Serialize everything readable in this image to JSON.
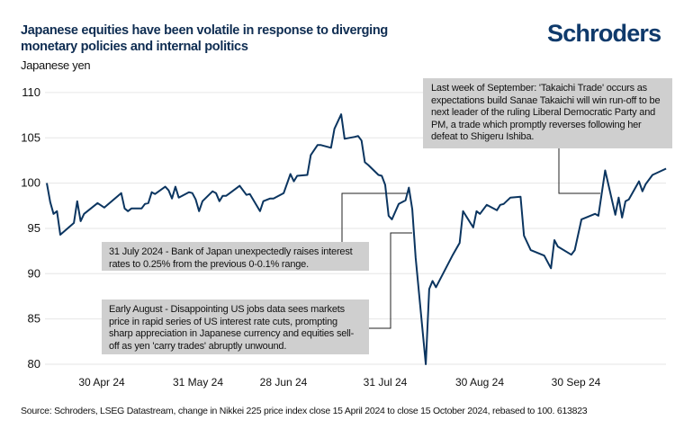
{
  "header": {
    "title": "Japanese equities have been volatile in response to diverging monetary policies and internal politics",
    "logo": "Schroders",
    "unit": "Japanese yen"
  },
  "footer": {
    "source": "Source: Schroders, LSEG Datastream, change in Nikkei 225 price index close 15 April 2024 to close 15 October 2024, rebased to 100. 613823"
  },
  "colors": {
    "line": "#0b3560",
    "title": "#0f2d52",
    "logo": "#0f3a6b",
    "annotation_box": "#cfcfcf",
    "grid": "#e6e6e6"
  },
  "chart_data": {
    "type": "line",
    "title": "Japanese equities have been volatile in response to diverging monetary policies and internal politics",
    "ylabel": "Japanese yen",
    "ylim": [
      80,
      110
    ],
    "yticks": [
      80,
      85,
      90,
      95,
      100,
      105,
      110
    ],
    "xtick_labels": [
      "30 Apr 24",
      "31 May 24",
      "28 Jun 24",
      "31 Jul 24",
      "30 Aug 24",
      "30 Sep 24"
    ],
    "grid": "horizontal",
    "series": [
      {
        "points": [
          [
            "2024-04-15",
            100.0
          ],
          [
            "2024-04-16",
            97.9
          ],
          [
            "2024-04-17",
            96.6
          ],
          [
            "2024-04-18",
            96.9
          ],
          [
            "2024-04-19",
            94.3
          ],
          [
            "2024-04-23",
            95.6
          ],
          [
            "2024-04-24",
            98.0
          ],
          [
            "2024-04-25",
            95.8
          ],
          [
            "2024-04-26",
            96.6
          ],
          [
            "2024-04-30",
            97.8
          ],
          [
            "2024-05-02",
            97.3
          ],
          [
            "2024-05-07",
            98.9
          ],
          [
            "2024-05-08",
            97.2
          ],
          [
            "2024-05-09",
            96.9
          ],
          [
            "2024-05-10",
            97.2
          ],
          [
            "2024-05-13",
            97.2
          ],
          [
            "2024-05-14",
            97.7
          ],
          [
            "2024-05-15",
            97.8
          ],
          [
            "2024-05-16",
            99.0
          ],
          [
            "2024-05-17",
            98.8
          ],
          [
            "2024-05-20",
            99.6
          ],
          [
            "2024-05-21",
            99.2
          ],
          [
            "2024-05-22",
            98.3
          ],
          [
            "2024-05-23",
            99.6
          ],
          [
            "2024-05-24",
            98.4
          ],
          [
            "2024-05-27",
            99.0
          ],
          [
            "2024-05-28",
            98.9
          ],
          [
            "2024-05-29",
            98.2
          ],
          [
            "2024-05-30",
            96.9
          ],
          [
            "2024-05-31",
            98.0
          ],
          [
            "2024-06-03",
            99.1
          ],
          [
            "2024-06-04",
            98.9
          ],
          [
            "2024-06-05",
            98.0
          ],
          [
            "2024-06-06",
            98.6
          ],
          [
            "2024-06-07",
            98.6
          ],
          [
            "2024-06-11",
            99.7
          ],
          [
            "2024-06-13",
            98.7
          ],
          [
            "2024-06-14",
            98.8
          ],
          [
            "2024-06-17",
            96.9
          ],
          [
            "2024-06-18",
            98.0
          ],
          [
            "2024-06-20",
            98.3
          ],
          [
            "2024-06-21",
            98.3
          ],
          [
            "2024-06-24",
            98.9
          ],
          [
            "2024-06-26",
            101.0
          ],
          [
            "2024-06-27",
            100.2
          ],
          [
            "2024-06-28",
            100.8
          ],
          [
            "2024-07-01",
            100.9
          ],
          [
            "2024-07-02",
            103.1
          ],
          [
            "2024-07-04",
            104.2
          ],
          [
            "2024-07-05",
            104.2
          ],
          [
            "2024-07-08",
            103.9
          ],
          [
            "2024-07-09",
            106.0
          ],
          [
            "2024-07-11",
            107.6
          ],
          [
            "2024-07-12",
            104.9
          ],
          [
            "2024-07-15",
            105.1
          ],
          [
            "2024-07-16",
            105.2
          ],
          [
            "2024-07-17",
            104.7
          ],
          [
            "2024-07-18",
            102.3
          ],
          [
            "2024-07-19",
            102.0
          ],
          [
            "2024-07-22",
            100.9
          ],
          [
            "2024-07-23",
            100.8
          ],
          [
            "2024-07-24",
            99.8
          ],
          [
            "2024-07-25",
            96.4
          ],
          [
            "2024-07-26",
            96.0
          ],
          [
            "2024-07-28",
            97.7
          ],
          [
            "2024-07-30",
            98.1
          ],
          [
            "2024-07-31",
            99.5
          ],
          [
            "2024-08-01",
            97.1
          ],
          [
            "2024-08-02",
            91.8
          ],
          [
            "2024-08-05",
            80.0
          ],
          [
            "2024-08-06",
            88.3
          ],
          [
            "2024-08-07",
            89.2
          ],
          [
            "2024-08-08",
            88.5
          ],
          [
            "2024-08-13",
            92.1
          ],
          [
            "2024-08-15",
            93.4
          ],
          [
            "2024-08-16",
            96.9
          ],
          [
            "2024-08-19",
            95.1
          ],
          [
            "2024-08-20",
            96.9
          ],
          [
            "2024-08-21",
            96.6
          ],
          [
            "2024-08-23",
            97.6
          ],
          [
            "2024-08-26",
            97.0
          ],
          [
            "2024-08-27",
            97.6
          ],
          [
            "2024-08-28",
            97.7
          ],
          [
            "2024-08-30",
            98.4
          ],
          [
            "2024-09-02",
            98.5
          ],
          [
            "2024-09-03",
            94.2
          ],
          [
            "2024-09-05",
            92.6
          ],
          [
            "2024-09-09",
            92.0
          ],
          [
            "2024-09-11",
            90.6
          ],
          [
            "2024-09-12",
            93.7
          ],
          [
            "2024-09-13",
            93.0
          ],
          [
            "2024-09-17",
            92.1
          ],
          [
            "2024-09-18",
            92.6
          ],
          [
            "2024-09-20",
            96.0
          ],
          [
            "2024-09-24",
            96.6
          ],
          [
            "2024-09-25",
            96.4
          ],
          [
            "2024-09-27",
            101.4
          ],
          [
            "2024-09-30",
            96.5
          ],
          [
            "2024-10-01",
            98.4
          ],
          [
            "2024-10-02",
            96.2
          ],
          [
            "2024-10-03",
            98.0
          ],
          [
            "2024-10-04",
            98.2
          ],
          [
            "2024-10-07",
            100.2
          ],
          [
            "2024-10-08",
            99.1
          ],
          [
            "2024-10-09",
            99.9
          ],
          [
            "2024-10-11",
            100.9
          ],
          [
            "2024-10-15",
            101.6
          ]
        ]
      }
    ],
    "annotations": [
      {
        "text": "31 July 2024 - Bank of Japan unexpectedly raises interest rates to 0.25% from the previous 0-0.1% range."
      },
      {
        "text": "Early August - Disappointing US jobs data sees markets price in rapid series of US interest rate cuts, prompting sharp appreciation in Japanese currency and equities sell-off as yen  'carry trades'  abruptly unwound."
      },
      {
        "text": "Last week of September:  'Takaichi Trade'  occurs as expectations build Sanae Takaichi will win run-off to be next leader of the ruling Liberal Democratic Party and PM, a trade which promptly reverses following her defeat to Shigeru Ishiba."
      }
    ]
  }
}
